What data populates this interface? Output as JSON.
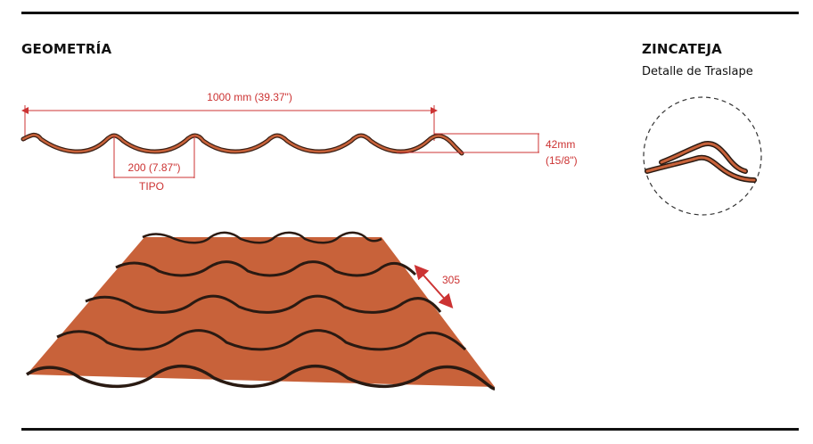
{
  "geometry": {
    "heading": "GEOMETRÍA",
    "width_label": "1000 mm (39.37\")",
    "pitch_label": "200 (7.87\")",
    "type_label": "TIPO",
    "height_label_line1": "42mm",
    "height_label_line2": "(15/8\")",
    "step_label": "305"
  },
  "overlap": {
    "heading": "ZINCATEJA",
    "subtitle": "Detalle de Traslape"
  },
  "colors": {
    "tile": "#c8623a",
    "tile_edge": "#3a1f14",
    "dimension": "#cc3333",
    "rule": "#111111"
  }
}
